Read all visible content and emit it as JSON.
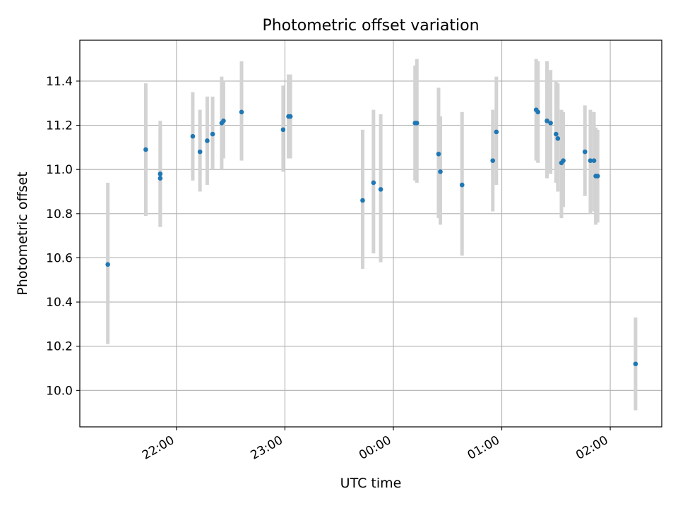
{
  "chart_data": {
    "type": "scatter",
    "title": "Photometric offset variation",
    "xlabel": "UTC time",
    "ylabel": "Photometric offset",
    "x_unit": "minutes relative to 00:00 UTC",
    "xlim": [
      -173.5,
      148.5
    ],
    "ylim": [
      9.835,
      11.585
    ],
    "x_ticks": [
      {
        "value": -120,
        "label": "22:00"
      },
      {
        "value": -60,
        "label": "23:00"
      },
      {
        "value": 0,
        "label": "00:00"
      },
      {
        "value": 60,
        "label": "01:00"
      },
      {
        "value": 120,
        "label": "02:00"
      }
    ],
    "y_ticks": [
      {
        "value": 10.0,
        "label": "10.0"
      },
      {
        "value": 10.2,
        "label": "10.2"
      },
      {
        "value": 10.4,
        "label": "10.4"
      },
      {
        "value": 10.6,
        "label": "10.6"
      },
      {
        "value": 10.8,
        "label": "10.8"
      },
      {
        "value": 11.0,
        "label": "11.0"
      },
      {
        "value": 11.2,
        "label": "11.2"
      },
      {
        "value": 11.4,
        "label": "11.4"
      }
    ],
    "grid": true,
    "point_color": "#1f77b4",
    "errorbar_color": "#d3d3d3",
    "points": [
      {
        "x": -158.0,
        "y": 10.57,
        "ylo": 10.21,
        "yhi": 10.94
      },
      {
        "x": -137.0,
        "y": 11.09,
        "ylo": 10.79,
        "yhi": 11.39
      },
      {
        "x": -129.0,
        "y": 10.98,
        "ylo": 10.74,
        "yhi": 11.22
      },
      {
        "x": -129.0,
        "y": 10.96,
        "ylo": 10.74,
        "yhi": 11.18
      },
      {
        "x": -111.0,
        "y": 11.15,
        "ylo": 10.95,
        "yhi": 11.35
      },
      {
        "x": -107.0,
        "y": 11.08,
        "ylo": 10.9,
        "yhi": 11.27
      },
      {
        "x": -103.0,
        "y": 11.13,
        "ylo": 10.93,
        "yhi": 11.33
      },
      {
        "x": -100.0,
        "y": 11.16,
        "ylo": 11.0,
        "yhi": 11.33
      },
      {
        "x": -95.0,
        "y": 11.21,
        "ylo": 11.0,
        "yhi": 11.42
      },
      {
        "x": -94.0,
        "y": 11.22,
        "ylo": 11.05,
        "yhi": 11.4
      },
      {
        "x": -84.0,
        "y": 11.26,
        "ylo": 11.04,
        "yhi": 11.49
      },
      {
        "x": -61.0,
        "y": 11.18,
        "ylo": 10.99,
        "yhi": 11.38
      },
      {
        "x": -58.0,
        "y": 11.24,
        "ylo": 11.05,
        "yhi": 11.43
      },
      {
        "x": -57.0,
        "y": 11.24,
        "ylo": 11.05,
        "yhi": 11.43
      },
      {
        "x": -17.0,
        "y": 10.86,
        "ylo": 10.55,
        "yhi": 11.18
      },
      {
        "x": -11.0,
        "y": 10.94,
        "ylo": 10.62,
        "yhi": 11.27
      },
      {
        "x": -7.0,
        "y": 10.91,
        "ylo": 10.58,
        "yhi": 11.25
      },
      {
        "x": 12.0,
        "y": 11.21,
        "ylo": 10.95,
        "yhi": 11.47
      },
      {
        "x": 13.0,
        "y": 11.21,
        "ylo": 10.94,
        "yhi": 11.5
      },
      {
        "x": 25.0,
        "y": 11.07,
        "ylo": 10.78,
        "yhi": 11.37
      },
      {
        "x": 26.0,
        "y": 10.99,
        "ylo": 10.75,
        "yhi": 11.24
      },
      {
        "x": 38.0,
        "y": 10.93,
        "ylo": 10.61,
        "yhi": 11.26
      },
      {
        "x": 55.0,
        "y": 11.04,
        "ylo": 10.81,
        "yhi": 11.27
      },
      {
        "x": 57.0,
        "y": 11.17,
        "ylo": 10.93,
        "yhi": 11.42
      },
      {
        "x": 79.0,
        "y": 11.27,
        "ylo": 11.04,
        "yhi": 11.5
      },
      {
        "x": 80.0,
        "y": 11.26,
        "ylo": 11.03,
        "yhi": 11.49
      },
      {
        "x": 85.0,
        "y": 11.22,
        "ylo": 10.96,
        "yhi": 11.49
      },
      {
        "x": 87.0,
        "y": 11.21,
        "ylo": 10.98,
        "yhi": 11.45
      },
      {
        "x": 90.0,
        "y": 11.16,
        "ylo": 10.94,
        "yhi": 11.4
      },
      {
        "x": 91.0,
        "y": 11.14,
        "ylo": 10.9,
        "yhi": 11.39
      },
      {
        "x": 93.0,
        "y": 11.03,
        "ylo": 10.78,
        "yhi": 11.27
      },
      {
        "x": 94.0,
        "y": 11.04,
        "ylo": 10.83,
        "yhi": 11.26
      },
      {
        "x": 106.0,
        "y": 11.08,
        "ylo": 10.88,
        "yhi": 11.29
      },
      {
        "x": 109.0,
        "y": 11.04,
        "ylo": 10.8,
        "yhi": 11.27
      },
      {
        "x": 111.0,
        "y": 11.04,
        "ylo": 10.81,
        "yhi": 11.26
      },
      {
        "x": 112.0,
        "y": 10.97,
        "ylo": 10.75,
        "yhi": 11.19
      },
      {
        "x": 113.0,
        "y": 10.97,
        "ylo": 10.76,
        "yhi": 11.18
      },
      {
        "x": 134.0,
        "y": 10.12,
        "ylo": 9.91,
        "yhi": 10.33
      }
    ]
  }
}
